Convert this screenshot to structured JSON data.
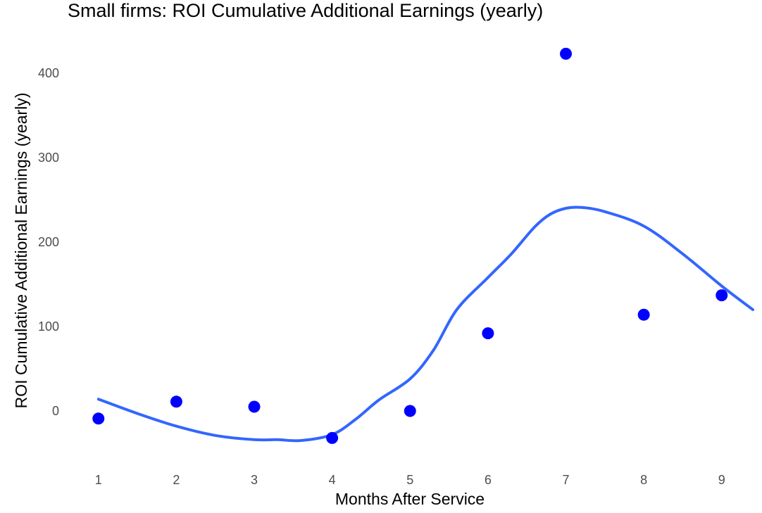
{
  "chart_data": {
    "type": "scatter",
    "title": "Small firms: ROI Cumulative Additional Earnings (yearly)",
    "xlabel": "Months After Service",
    "ylabel": "ROI Cumulative Additional Earnings (yearly)",
    "x_ticks": [
      "1",
      "2",
      "3",
      "4",
      "5",
      "6",
      "7",
      "8",
      "9"
    ],
    "y_ticks": [
      "0",
      "100",
      "200",
      "300",
      "400"
    ],
    "xlim": [
      0.55,
      9.4
    ],
    "ylim": [
      -70,
      445
    ],
    "grid": false,
    "points": {
      "x": [
        1,
        2,
        3,
        4,
        5,
        6,
        7,
        8,
        9
      ],
      "y": [
        -9,
        11,
        5,
        -32,
        0,
        92,
        423,
        114,
        137
      ],
      "color": "#0000ff"
    },
    "smooth": {
      "color": "#3366ff",
      "x": [
        1,
        1.5,
        2,
        2.5,
        3,
        3.3,
        3.6,
        4,
        4.3,
        4.6,
        5,
        5.3,
        5.6,
        6,
        6.3,
        6.6,
        6.8,
        7,
        7.2,
        7.5,
        8,
        8.5,
        9,
        9.4
      ],
      "y": [
        14,
        -3,
        -18,
        -29,
        -34,
        -34,
        -35,
        -28,
        -10,
        13,
        38,
        72,
        120,
        158,
        186,
        218,
        233,
        240,
        241,
        236,
        219,
        186,
        148,
        120
      ]
    }
  }
}
